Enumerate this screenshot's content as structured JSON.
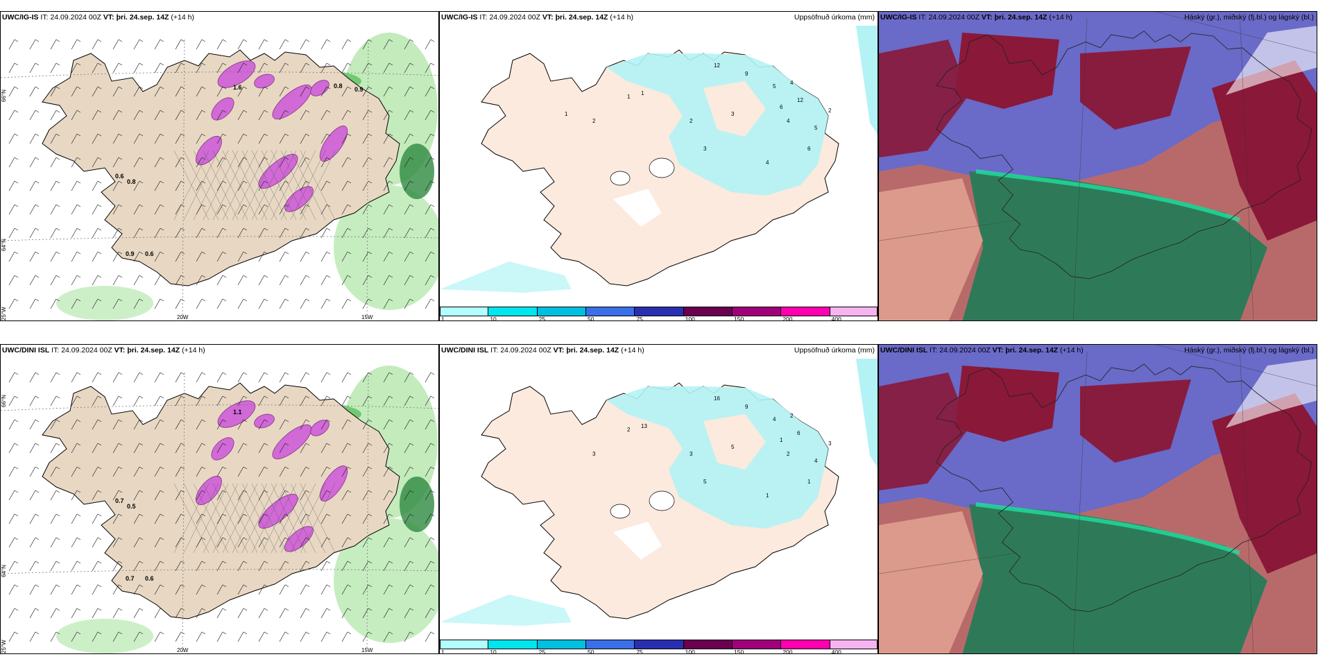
{
  "rows": [
    {
      "model": "UWC/IG-IS",
      "it_label": "IT:",
      "it_value": "24.09.2024 00Z",
      "vt_label": "VT:",
      "vt_value": "þri. 24.sep. 14Z",
      "lead": "(+14 h)"
    },
    {
      "model": "UWC/DINI ISL",
      "it_label": "IT:",
      "it_value": "24.09.2024 00Z",
      "vt_label": "VT:",
      "vt_value": "þri. 24.sep. 14Z",
      "lead": "(+14 h)"
    }
  ],
  "titles": {
    "precip": "Uppsöfnuð úrkoma (mm)",
    "clouds": "Háský (gr.), miðský (fj.bl.) og lágský (bl.)"
  },
  "axis_labels": {
    "lat66": "66°N",
    "lat64": "64°N",
    "lon25": "25°W",
    "lon20": "20W",
    "lon15": "15W"
  },
  "legend": {
    "labels": [
      "1",
      "10",
      "25",
      "50",
      "75",
      "100",
      "150",
      "200",
      "400"
    ],
    "colors": [
      "#b3ffff",
      "#00e5ee",
      "#00bfe0",
      "#3a6fe8",
      "#2a2fb0",
      "#6a004f",
      "#a0007a",
      "#ff00b0",
      "#f5b3f0"
    ]
  },
  "colors": {
    "land": "#e8d8c3",
    "land_precip": "#fbeadd",
    "precip_light": "#b3f3f5",
    "snow": "#d060d8",
    "green": "#b8e8b0",
    "cloud_high": "#8a1838",
    "cloud_mid": "#6a6ac8",
    "cloud_low": "#2e7a58"
  },
  "precip_values_top": [
    "12",
    "9",
    "5",
    "4",
    "3",
    "2",
    "1",
    "12",
    "6",
    "4",
    "5",
    "2",
    "3",
    "1",
    "6",
    "2",
    "4",
    "1"
  ],
  "precip_values_bottom": [
    "16",
    "9",
    "4",
    "2",
    "5",
    "3",
    "13",
    "6",
    "1",
    "2",
    "4",
    "3",
    "5",
    "2",
    "1",
    "3",
    "1"
  ],
  "snow_values_top": [
    "0.6",
    "0.8",
    "0.9",
    "0.6",
    "1.6",
    "0.8",
    "0.9"
  ],
  "snow_values_bottom": [
    "0.7",
    "0.5",
    "0.7",
    "0.6",
    "1.1"
  ]
}
